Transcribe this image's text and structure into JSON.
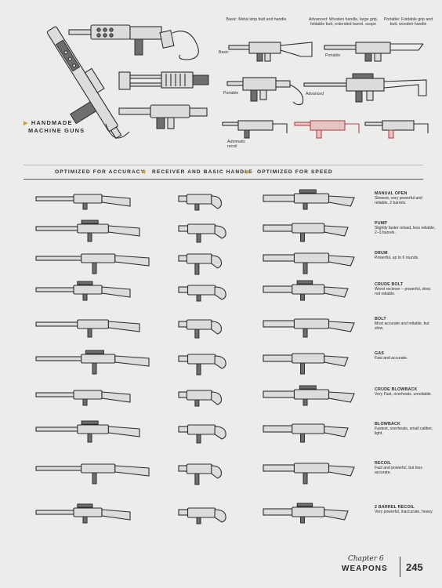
{
  "section": {
    "title_line1": "HANDMADE",
    "title_line2": "MACHINE GUNS"
  },
  "variants": {
    "basic_caption": "Basic: Metal strip butt and handle",
    "advanced_caption": "Advanced: Wooden handle, large grip, foldable butt, extended barrel, scope",
    "portable_caption": "Portable: Foldable grip and butt, wooden handle",
    "label_basic": "Basic",
    "label_portable_top": "Portable",
    "label_portable_mid": "Portable",
    "label_advanced": "Advanced",
    "label_automatic": "Automatic recoil"
  },
  "header": {
    "left": "OPTIMIZED FOR ACCURACY",
    "center": "RECEIVER AND BASIC HANDLE",
    "right": "OPTIMIZED FOR SPEED"
  },
  "receivers": [
    {
      "title": "MANUAL OPEN",
      "desc": "Slowest, very powerful and reliable, 2 barrels."
    },
    {
      "title": "PUMP",
      "desc": "Slightly faster reload, less reliable, 2–3 barrels."
    },
    {
      "title": "DRUM",
      "desc": "Powerful, up to 6 rounds."
    },
    {
      "title": "CRUDE BOLT",
      "desc": "Worst reciever – powerful, slow, not reliable."
    },
    {
      "title": "BOLT",
      "desc": "Most accurate and reliable, but slow."
    },
    {
      "title": "GAS",
      "desc": "Fast and accurate."
    },
    {
      "title": "CRUDE BLOWBACK",
      "desc": "Very Fast, overheats, unreliable."
    },
    {
      "title": "BLOWBACK",
      "desc": "Fastest, overheats, small caliber, light."
    },
    {
      "title": "RECOIL",
      "desc": "Fast and powerful, but less accurate."
    },
    {
      "title": "2 BARREL RECOIL",
      "desc": "Very powerful, inaccurate, heavy."
    }
  ],
  "footer": {
    "chapter": "Chapter 6",
    "title": "WEAPONS",
    "page": "245"
  },
  "colors": {
    "background": "#ececea",
    "accent_gold": "#c9a24a",
    "highlight_red": "#b04a4a"
  }
}
